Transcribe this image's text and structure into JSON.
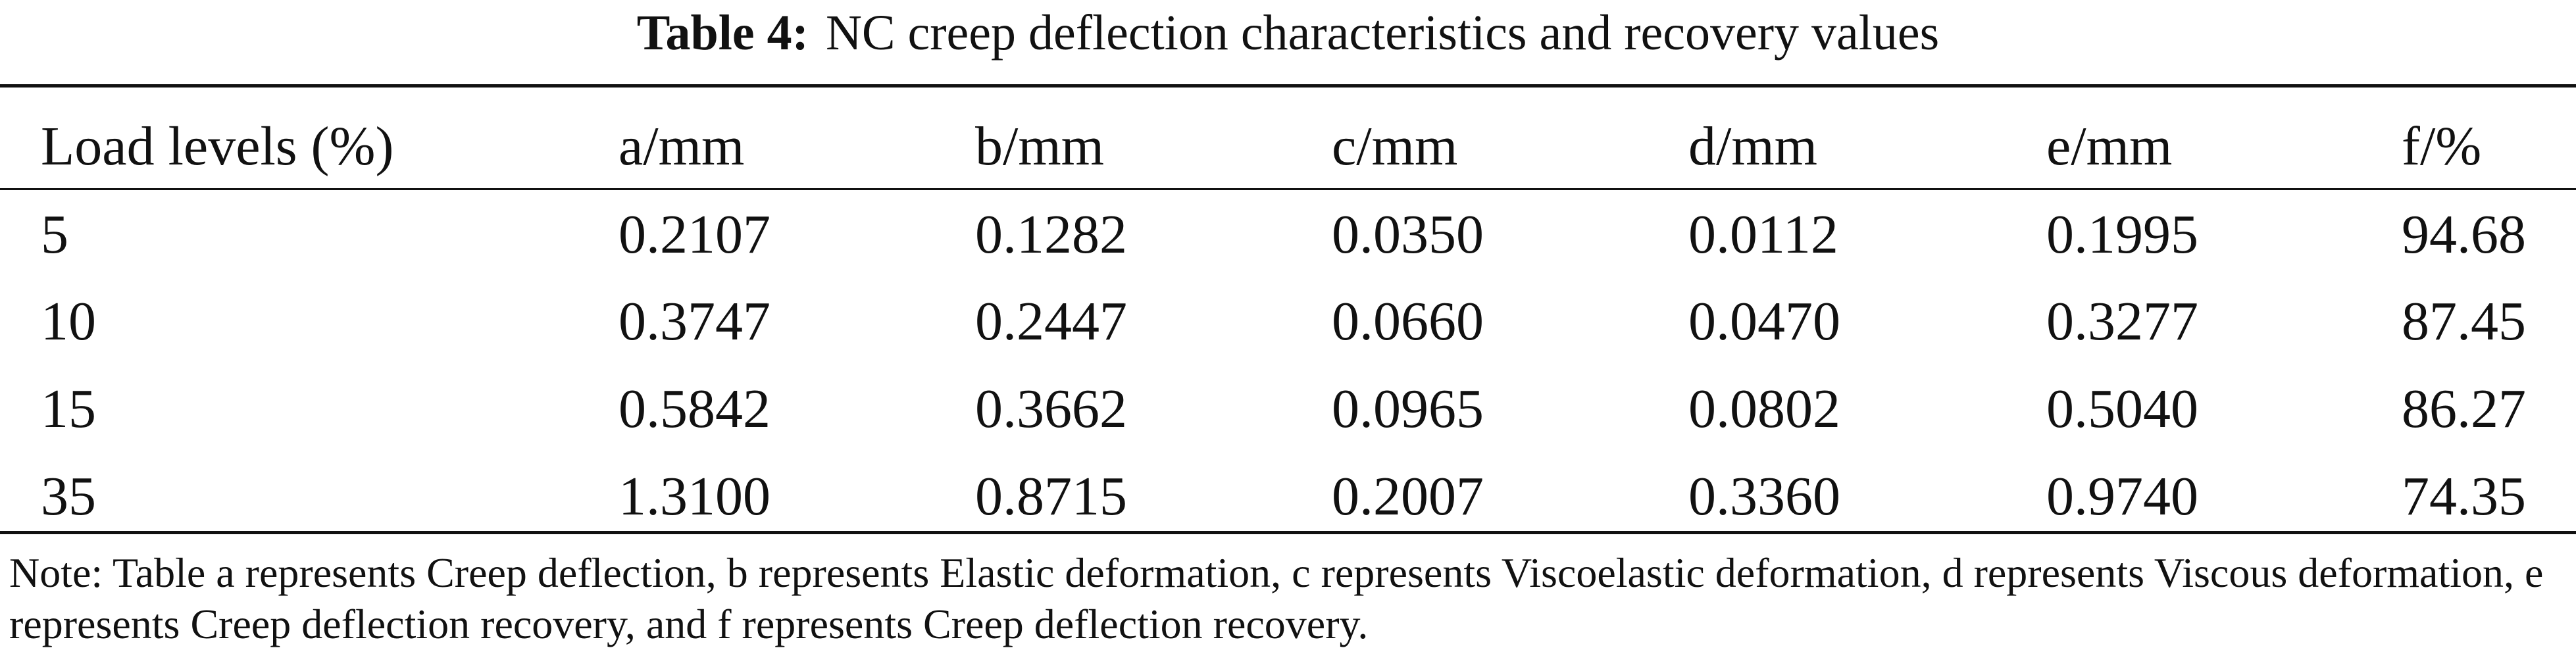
{
  "caption": {
    "label": "Table 4:",
    "text": "NC creep deflection characteristics and recovery values"
  },
  "table": {
    "headers": [
      "Load levels (%)",
      "a/mm",
      "b/mm",
      "c/mm",
      "d/mm",
      "e/mm",
      "f/%"
    ],
    "rows": [
      [
        "5",
        "0.2107",
        "0.1282",
        "0.0350",
        "0.0112",
        "0.1995",
        "94.68"
      ],
      [
        "10",
        "0.3747",
        "0.2447",
        "0.0660",
        "0.0470",
        "0.3277",
        "87.45"
      ],
      [
        "15",
        "0.5842",
        "0.3662",
        "0.0965",
        "0.0802",
        "0.5040",
        "86.27"
      ],
      [
        "35",
        "1.3100",
        "0.8715",
        "0.2007",
        "0.3360",
        "0.9740",
        "74.35"
      ]
    ]
  },
  "note": "Note: Table a represents Creep deflection, b represents Elastic deformation, c represents Viscoelastic deformation, d represents Viscous deformation, e represents Creep deflection recovery, and f represents Creep deflection recovery."
}
